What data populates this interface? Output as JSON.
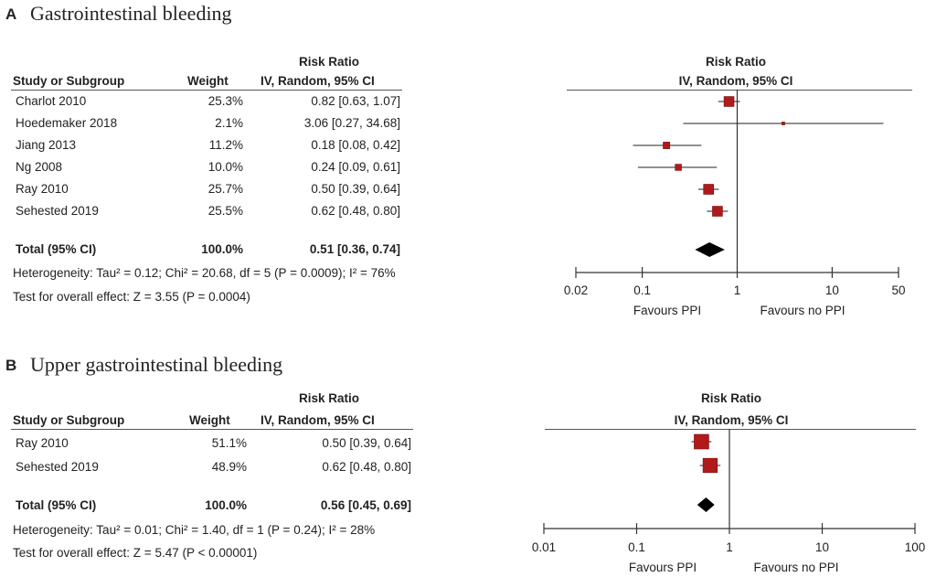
{
  "chart_data": [
    {
      "type": "forest",
      "panel": "A",
      "title": "Gastrointestinal bleeding",
      "header_group": "Risk Ratio",
      "col_study": "Study or Subgroup",
      "col_weight": "Weight",
      "col_ci": "IV, Random, 95% CI",
      "plot_header": "Risk Ratio",
      "plot_subheader": "IV, Random, 95% CI",
      "studies": [
        {
          "name": "Charlot 2010",
          "weight": "25.3%",
          "ci_text": "0.82 [0.63, 1.07]",
          "rr": 0.82,
          "low": 0.63,
          "high": 1.07,
          "w": 25.3
        },
        {
          "name": "Hoedemaker 2018",
          "weight": "2.1%",
          "ci_text": "3.06 [0.27, 34.68]",
          "rr": 3.06,
          "low": 0.27,
          "high": 34.68,
          "w": 2.1
        },
        {
          "name": "Jiang 2013",
          "weight": "11.2%",
          "ci_text": "0.18 [0.08, 0.42]",
          "rr": 0.18,
          "low": 0.08,
          "high": 0.42,
          "w": 11.2
        },
        {
          "name": "Ng 2008",
          "weight": "10.0%",
          "ci_text": "0.24 [0.09, 0.61]",
          "rr": 0.24,
          "low": 0.09,
          "high": 0.61,
          "w": 10.0
        },
        {
          "name": "Ray 2010",
          "weight": "25.7%",
          "ci_text": "0.50 [0.39, 0.64]",
          "rr": 0.5,
          "low": 0.39,
          "high": 0.64,
          "w": 25.7
        },
        {
          "name": "Sehested 2019",
          "weight": "25.5%",
          "ci_text": "0.62 [0.48, 0.80]",
          "rr": 0.62,
          "low": 0.48,
          "high": 0.8,
          "w": 25.5
        }
      ],
      "total": {
        "name": "Total (95% CI)",
        "weight": "100.0%",
        "ci_text": "0.51 [0.36, 0.74]",
        "rr": 0.51,
        "low": 0.36,
        "high": 0.74
      },
      "heterogeneity": "Heterogeneity: Tau² = 0.12; Chi² = 20.68, df = 5 (P = 0.0009); I² = 76%",
      "overall": "Test for overall effect: Z = 3.55 (P = 0.0004)",
      "axis_ticks": [
        0.02,
        0.1,
        1,
        10,
        50
      ],
      "axis_tick_labels": [
        "0.02",
        "0.1",
        "1",
        "10",
        "50"
      ],
      "axis_range": [
        0.02,
        50
      ],
      "favours_left": "Favours PPI",
      "favours_right": "Favours no PPI"
    },
    {
      "type": "forest",
      "panel": "B",
      "title": "Upper gastrointestinal bleeding",
      "header_group": "Risk Ratio",
      "col_study": "Study or Subgroup",
      "col_weight": "Weight",
      "col_ci": "IV, Random, 95% CI",
      "plot_header": "Risk Ratio",
      "plot_subheader": "IV, Random, 95% CI",
      "studies": [
        {
          "name": "Ray 2010",
          "weight": "51.1%",
          "ci_text": "0.50 [0.39, 0.64]",
          "rr": 0.5,
          "low": 0.39,
          "high": 0.64,
          "w": 51.1
        },
        {
          "name": "Sehested 2019",
          "weight": "48.9%",
          "ci_text": "0.62 [0.48, 0.80]",
          "rr": 0.62,
          "low": 0.48,
          "high": 0.8,
          "w": 48.9
        }
      ],
      "total": {
        "name": "Total (95% CI)",
        "weight": "100.0%",
        "ci_text": "0.56 [0.45, 0.69]",
        "rr": 0.56,
        "low": 0.45,
        "high": 0.69
      },
      "heterogeneity": "Heterogeneity: Tau² = 0.01; Chi² = 1.40, df = 1 (P = 0.24); I² = 28%",
      "overall": "Test for overall effect: Z = 5.47 (P < 0.00001)",
      "axis_ticks": [
        0.01,
        0.1,
        1,
        10,
        100
      ],
      "axis_tick_labels": [
        "0.01",
        "0.1",
        "1",
        "10",
        "100"
      ],
      "axis_range": [
        0.01,
        100
      ],
      "favours_left": "Favours PPI",
      "favours_right": "Favours no PPI"
    }
  ],
  "colors": {
    "marker": "#b01a1a",
    "text": "#222222",
    "line": "#333333"
  }
}
